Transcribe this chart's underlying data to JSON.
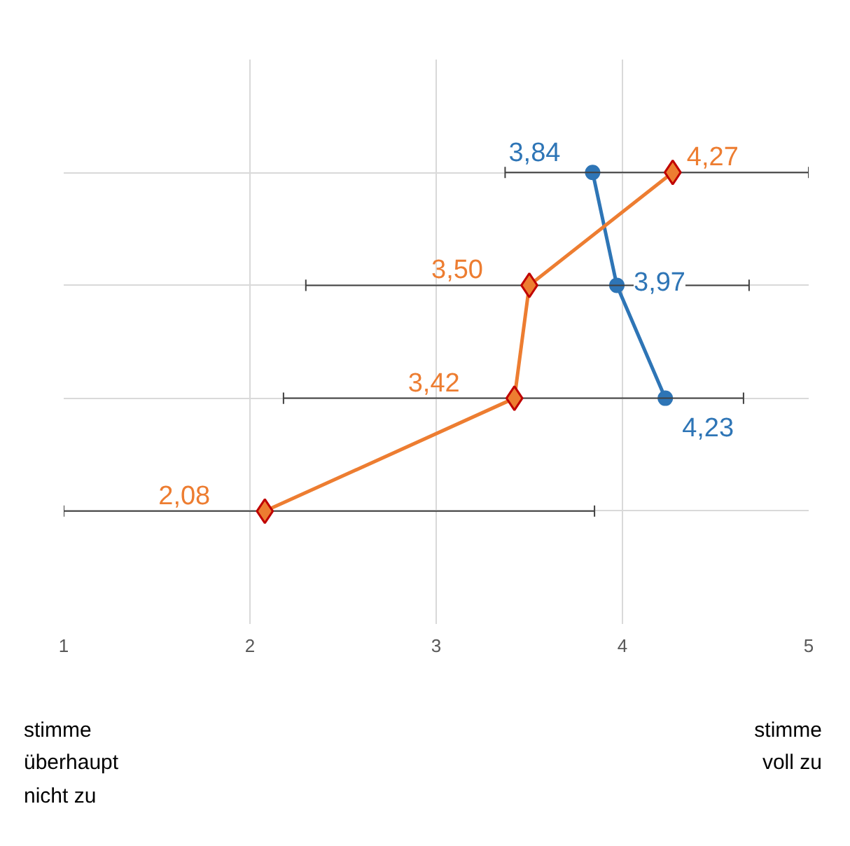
{
  "chart_data": {
    "type": "line",
    "orientation": "horizontal",
    "categories": [
      null,
      null,
      null,
      null
    ],
    "xlim": [
      1,
      5
    ],
    "xticks": [
      1,
      2,
      3,
      4,
      5
    ],
    "grid": true,
    "series": [
      {
        "color": "#2e75b6",
        "marker": "circle",
        "values": [
          3.84,
          3.97,
          4.23,
          null
        ],
        "value_labels": [
          "3,84",
          "3,97",
          "4,23",
          null
        ]
      },
      {
        "color": "#ed7d31",
        "marker": "diamond",
        "values": [
          4.27,
          3.5,
          3.42,
          2.08
        ],
        "value_labels": [
          "4,27",
          "3,50",
          "3,42",
          "2,08"
        ],
        "errors": [
          [
            3.37,
            5
          ],
          [
            2.3,
            4.68
          ],
          [
            2.18,
            4.65
          ],
          [
            1,
            3.85
          ]
        ]
      }
    ],
    "annotations": [
      "stimme\nüberhaupt\nnicht zu",
      "stimme\nvoll zu"
    ]
  }
}
